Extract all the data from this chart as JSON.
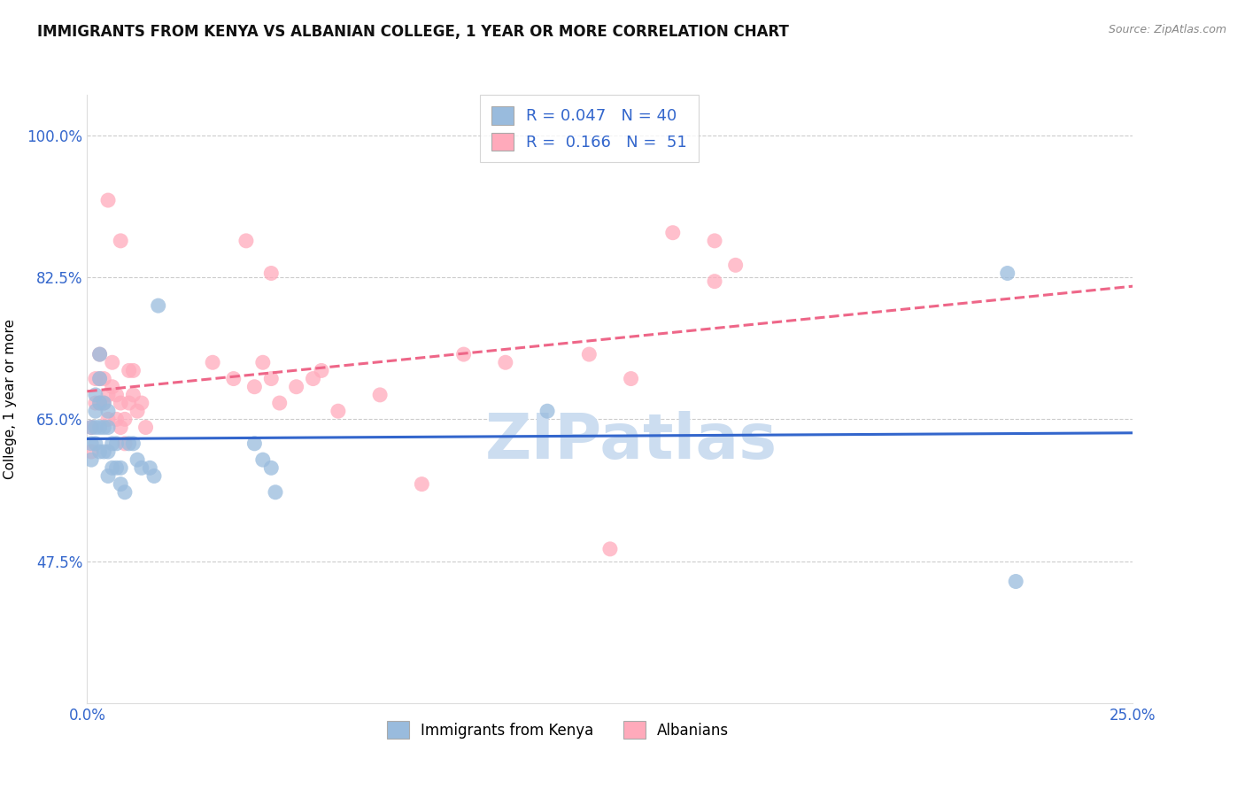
{
  "title": "IMMIGRANTS FROM KENYA VS ALBANIAN COLLEGE, 1 YEAR OR MORE CORRELATION CHART",
  "source": "Source: ZipAtlas.com",
  "ylabel": "College, 1 year or more",
  "ytick_labels": [
    "100.0%",
    "82.5%",
    "65.0%",
    "47.5%"
  ],
  "ytick_values": [
    1.0,
    0.825,
    0.65,
    0.475
  ],
  "xtick_labels": [
    "0.0%",
    "25.0%"
  ],
  "xtick_positions": [
    0.0,
    0.25
  ],
  "xmin": 0.0,
  "xmax": 0.25,
  "ymin": 0.3,
  "ymax": 1.05,
  "R_kenya": 0.047,
  "N_kenya": 40,
  "R_albanian": 0.166,
  "N_albanian": 51,
  "blue_scatter_color": "#99BBDD",
  "pink_scatter_color": "#FFAABB",
  "blue_line_color": "#3366CC",
  "pink_line_color": "#EE6688",
  "watermark_text": "ZIPatlas",
  "watermark_color": "#CCDDF0",
  "kenya_x": [
    0.001,
    0.001,
    0.001,
    0.002,
    0.002,
    0.002,
    0.002,
    0.003,
    0.003,
    0.003,
    0.003,
    0.003,
    0.004,
    0.004,
    0.004,
    0.005,
    0.005,
    0.005,
    0.005,
    0.006,
    0.006,
    0.007,
    0.007,
    0.008,
    0.008,
    0.009,
    0.01,
    0.011,
    0.012,
    0.013,
    0.015,
    0.016,
    0.017,
    0.04,
    0.042,
    0.044,
    0.045,
    0.11,
    0.22,
    0.222
  ],
  "kenya_y": [
    0.64,
    0.62,
    0.6,
    0.68,
    0.66,
    0.64,
    0.62,
    0.73,
    0.7,
    0.67,
    0.64,
    0.61,
    0.67,
    0.64,
    0.61,
    0.66,
    0.64,
    0.61,
    0.58,
    0.62,
    0.59,
    0.62,
    0.59,
    0.59,
    0.57,
    0.56,
    0.62,
    0.62,
    0.6,
    0.59,
    0.59,
    0.58,
    0.79,
    0.62,
    0.6,
    0.59,
    0.56,
    0.66,
    0.83,
    0.45
  ],
  "albanian_x": [
    0.001,
    0.001,
    0.002,
    0.002,
    0.003,
    0.003,
    0.003,
    0.004,
    0.004,
    0.005,
    0.005,
    0.006,
    0.006,
    0.007,
    0.007,
    0.008,
    0.008,
    0.009,
    0.009,
    0.01,
    0.01,
    0.011,
    0.011,
    0.012,
    0.013,
    0.014,
    0.03,
    0.035,
    0.04,
    0.042,
    0.044,
    0.046,
    0.05,
    0.054,
    0.056,
    0.06,
    0.07,
    0.08,
    0.09,
    0.1,
    0.12,
    0.125,
    0.13,
    0.14,
    0.15,
    0.155,
    0.038,
    0.044,
    0.005,
    0.008,
    0.15
  ],
  "albanian_y": [
    0.64,
    0.61,
    0.7,
    0.67,
    0.73,
    0.7,
    0.67,
    0.7,
    0.67,
    0.68,
    0.65,
    0.72,
    0.69,
    0.68,
    0.65,
    0.67,
    0.64,
    0.65,
    0.62,
    0.71,
    0.67,
    0.71,
    0.68,
    0.66,
    0.67,
    0.64,
    0.72,
    0.7,
    0.69,
    0.72,
    0.7,
    0.67,
    0.69,
    0.7,
    0.71,
    0.66,
    0.68,
    0.57,
    0.73,
    0.72,
    0.73,
    0.49,
    0.7,
    0.88,
    0.87,
    0.84,
    0.87,
    0.83,
    0.92,
    0.87,
    0.82
  ]
}
